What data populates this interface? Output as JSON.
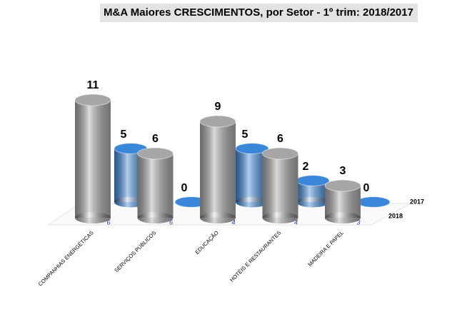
{
  "chart_data": {
    "type": "bar3d",
    "title": "M&A Maiores CRESCIMENTOS, por Setor  - 1º trim:  2018/2017",
    "categories": [
      "COMPANHIAS ENERGÉTICAS",
      "SERVIÇOS PÚBLICOS",
      "EDUCAÇÃO",
      "HOTÉIS E RESTAURANTES",
      "MADEIRA E PAPEL"
    ],
    "series": [
      {
        "name": "2018",
        "color": "#a6a6a6",
        "values": [
          11,
          6,
          9,
          6,
          3
        ]
      },
      {
        "name": "2017",
        "color": "#3a86d8",
        "values": [
          5,
          0,
          5,
          2,
          0
        ]
      }
    ],
    "floor_values": [
      6,
      6,
      4,
      4,
      3
    ],
    "floor_color": "#1f3fbf"
  }
}
